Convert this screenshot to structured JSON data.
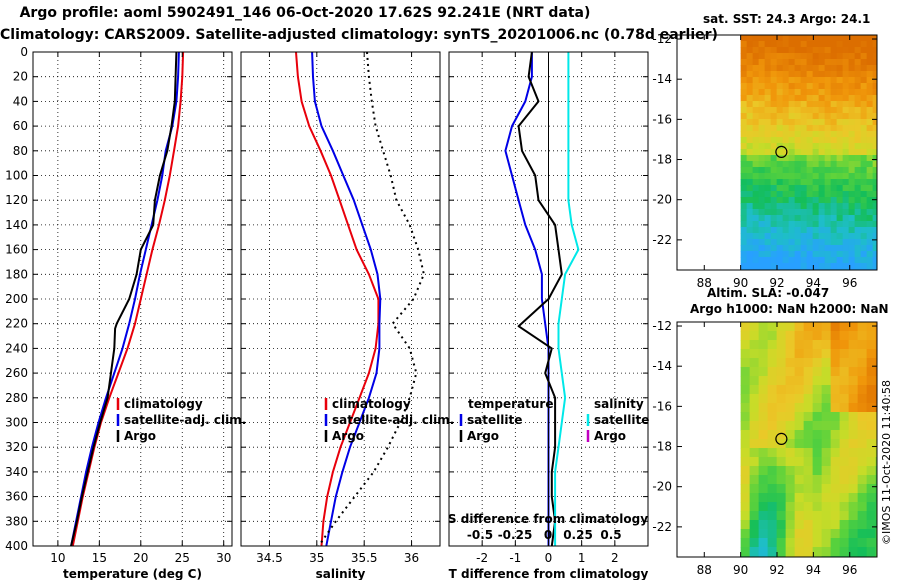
{
  "titles": {
    "line1": "Argo profile: aoml 5902491_146 06-Oct-2020 17.62S 92.241E (NRT data)",
    "line2": "Climatology: CARS2009. Satellite-adjusted climatology: synTS_20201006.nc (0.78d earlier)"
  },
  "map_titles": {
    "sst": "sat. SST: 24.3 Argo: 24.1",
    "sla": "Altim. SLA: -0.047",
    "h": "Argo h1000: NaN h2000: NaN"
  },
  "stamp": "©IMOS 11-Oct-2020 11:40:58",
  "colors": {
    "climatology": "#e8000b",
    "satellite": "#0000e6",
    "argo": "#000000",
    "sat_salinity": "#00e8e8",
    "argo_salinity": "#c000c0"
  },
  "chart_data": [
    {
      "type": "line",
      "panel": "temperature",
      "xlabel": "temperature (deg C)",
      "ylabel": "",
      "xlim": [
        7,
        31
      ],
      "ylim": [
        0,
        400
      ],
      "xticks": [
        10,
        15,
        20,
        25,
        30
      ],
      "yticks": [
        0,
        20,
        40,
        60,
        80,
        100,
        120,
        140,
        160,
        180,
        200,
        220,
        240,
        260,
        280,
        300,
        320,
        340,
        360,
        380,
        400
      ],
      "legend": [
        "climatology",
        "satellite-adj. clim.",
        "Argo"
      ],
      "series": [
        {
          "name": "climatology",
          "color": "#e8000b",
          "x": [
            25.1,
            25.0,
            24.8,
            24.5,
            24.0,
            23.5,
            22.9,
            22.2,
            21.4,
            20.7,
            20.0,
            19.3,
            18.4,
            17.3,
            16.2,
            15.2,
            14.4,
            13.7,
            13.0,
            12.4,
            11.8
          ],
          "y": [
            0,
            20,
            40,
            60,
            80,
            100,
            120,
            140,
            160,
            180,
            200,
            220,
            240,
            260,
            280,
            300,
            320,
            340,
            360,
            380,
            400
          ]
        },
        {
          "name": "satellite-adj. clim.",
          "color": "#0000e6",
          "x": [
            24.6,
            24.5,
            24.3,
            23.8,
            23.0,
            22.6,
            22.0,
            21.3,
            20.6,
            19.9,
            19.3,
            18.6,
            17.8,
            16.8,
            15.8,
            14.9,
            14.1,
            13.4,
            12.8,
            12.2,
            11.6
          ],
          "y": [
            0,
            20,
            40,
            60,
            80,
            100,
            120,
            140,
            160,
            180,
            200,
            220,
            240,
            260,
            280,
            300,
            320,
            340,
            360,
            380,
            400
          ]
        },
        {
          "name": "Argo",
          "color": "#000000",
          "x": [
            24.3,
            24.2,
            24.1,
            23.7,
            23.2,
            22.3,
            21.7,
            21.5,
            20.0,
            19.5,
            18.6,
            17.1,
            16.9,
            16.8,
            16.0,
            15.1,
            14.3,
            13.6,
            12.9,
            12.3,
            11.6
          ],
          "y": [
            0,
            20,
            40,
            60,
            80,
            100,
            120,
            140,
            160,
            180,
            200,
            220,
            224,
            240,
            280,
            300,
            320,
            340,
            360,
            380,
            400
          ]
        }
      ]
    },
    {
      "type": "line",
      "panel": "salinity",
      "xlabel": "salinity",
      "ylabel": "",
      "xlim": [
        34.2,
        36.3
      ],
      "ylim": [
        0,
        400
      ],
      "xticks": [
        34.5,
        35,
        35.5,
        36
      ],
      "legend": [
        "climatology",
        "satellite-adj. clim.",
        "Argo"
      ],
      "series": [
        {
          "name": "climatology",
          "color": "#e8000b",
          "x": [
            34.78,
            34.8,
            34.84,
            34.92,
            35.04,
            35.15,
            35.24,
            35.33,
            35.42,
            35.55,
            35.65,
            35.65,
            35.62,
            35.55,
            35.45,
            35.35,
            35.25,
            35.17,
            35.11,
            35.07,
            35.05
          ],
          "y": [
            0,
            20,
            40,
            60,
            80,
            100,
            120,
            140,
            160,
            180,
            200,
            220,
            240,
            260,
            280,
            300,
            320,
            340,
            360,
            380,
            400
          ]
        },
        {
          "name": "satellite-adj. clim.",
          "color": "#0000e6",
          "x": [
            34.95,
            34.96,
            34.98,
            35.05,
            35.17,
            35.28,
            35.39,
            35.48,
            35.57,
            35.64,
            35.67,
            35.66,
            35.66,
            35.63,
            35.55,
            35.45,
            35.35,
            35.27,
            35.2,
            35.15,
            35.1
          ],
          "y": [
            0,
            20,
            40,
            60,
            80,
            100,
            120,
            140,
            160,
            180,
            200,
            220,
            240,
            260,
            280,
            300,
            320,
            340,
            360,
            380,
            400
          ]
        },
        {
          "name": "Argo",
          "color": "#000000",
          "dash": "dotted",
          "x": [
            35.53,
            35.55,
            35.58,
            35.62,
            35.7,
            35.78,
            35.84,
            35.98,
            36.07,
            36.13,
            36.02,
            35.8,
            35.98,
            36.05,
            35.98,
            35.88,
            35.75,
            35.6,
            35.4,
            35.2,
            35.02
          ],
          "y": [
            0,
            20,
            40,
            60,
            80,
            100,
            120,
            140,
            160,
            180,
            200,
            220,
            240,
            260,
            280,
            300,
            320,
            340,
            360,
            380,
            400
          ]
        }
      ]
    },
    {
      "type": "line",
      "panel": "difference",
      "xlabel": "T difference from climatology",
      "top_label": "S difference from climatology",
      "ylabel": "",
      "xlim": [
        -3,
        3
      ],
      "ylim": [
        0,
        400
      ],
      "xticks": [
        -2,
        -1,
        0,
        1,
        2
      ],
      "s_xticks": [
        "-0.5",
        "-0.25",
        "0",
        "0.25",
        "0.5"
      ],
      "legend_left_title": "temperature",
      "legend_right_title": "salinity",
      "legend": [
        "satellite",
        "Argo",
        "satellite",
        "Argo"
      ],
      "series": [
        {
          "name": "temperature satellite",
          "color": "#0000e6",
          "x": [
            -0.5,
            -0.5,
            -0.7,
            -1.1,
            -1.3,
            -1.1,
            -0.9,
            -0.7,
            -0.4,
            -0.2,
            -0.2,
            -0.1,
            0.0,
            0.0,
            0.0,
            0.0,
            0.0,
            0.0,
            0.0,
            0.0,
            0.0
          ],
          "y": [
            0,
            20,
            40,
            60,
            80,
            100,
            120,
            140,
            160,
            180,
            200,
            220,
            240,
            260,
            280,
            300,
            320,
            340,
            360,
            380,
            400
          ]
        },
        {
          "name": "temperature Argo",
          "color": "#000000",
          "x": [
            -0.5,
            -0.6,
            -0.3,
            -0.9,
            -0.8,
            -0.4,
            -0.3,
            0.2,
            0.3,
            0.4,
            0.0,
            -0.9,
            0.1,
            -0.1,
            0.2,
            0.2,
            0.2,
            0.1,
            0.1,
            0.2,
            0.1
          ],
          "y": [
            0,
            20,
            40,
            60,
            80,
            100,
            120,
            140,
            160,
            180,
            200,
            222,
            240,
            260,
            280,
            300,
            320,
            340,
            360,
            380,
            400
          ]
        },
        {
          "name": "salinity satellite",
          "color": "#00e8e8",
          "x": [
            0.6,
            0.6,
            0.6,
            0.6,
            0.6,
            0.6,
            0.6,
            0.7,
            0.9,
            0.5,
            0.4,
            0.3,
            0.3,
            0.4,
            0.5,
            0.4,
            0.3,
            0.2,
            0.2,
            0.2,
            0.2
          ],
          "y": [
            0,
            20,
            40,
            60,
            80,
            100,
            120,
            140,
            160,
            180,
            200,
            220,
            240,
            260,
            280,
            300,
            320,
            340,
            360,
            380,
            400
          ]
        }
      ]
    },
    {
      "type": "heatmap",
      "panel": "sst_map",
      "title": "sat. SST: 24.3 Argo: 24.1",
      "xticks": [
        88,
        90,
        92,
        94,
        96
      ],
      "yticks": [
        -12,
        -14,
        -16,
        -18,
        -20,
        -22
      ],
      "xlim": [
        86.5,
        97.5
      ],
      "ylim": [
        -23.5,
        -11.8
      ],
      "argo_position": [
        92.241,
        -17.62
      ]
    },
    {
      "type": "heatmap",
      "panel": "sla_map",
      "title": "Altim. SLA: -0.047",
      "xticks": [
        88,
        90,
        92,
        94,
        96
      ],
      "yticks": [
        -12,
        -14,
        -16,
        -18,
        -20,
        -22
      ],
      "xlim": [
        86.5,
        97.5
      ],
      "ylim": [
        -23.5,
        -11.8
      ],
      "argo_position": [
        92.241,
        -17.62
      ]
    }
  ]
}
